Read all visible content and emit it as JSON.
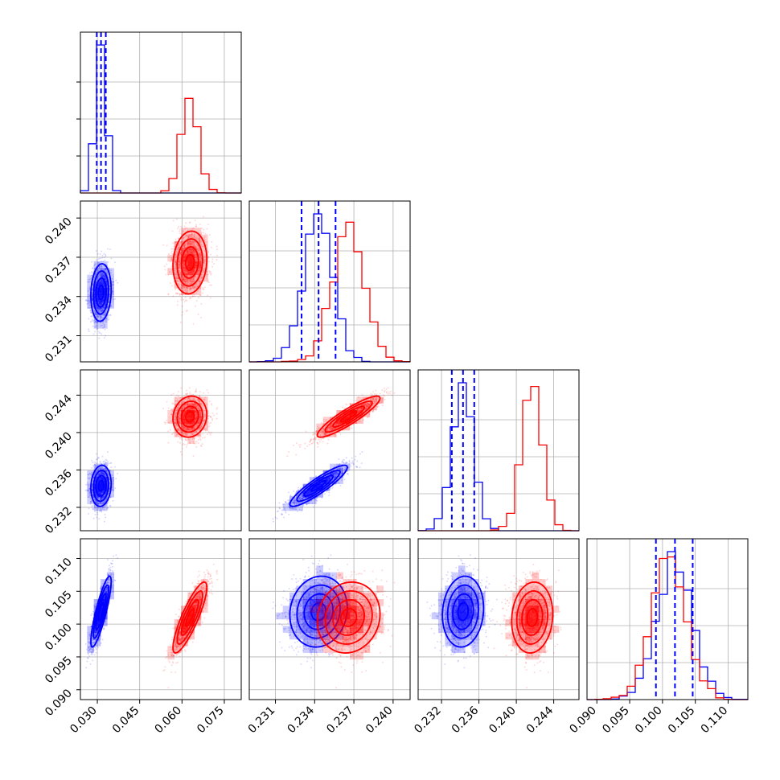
{
  "chart_data": {
    "type": "corner",
    "grid": true,
    "parameters": [
      {
        "range": [
          0.024,
          0.081
        ],
        "ticks": [
          "0.030",
          "0.045",
          "0.060",
          "0.075"
        ]
      },
      {
        "range": [
          0.229,
          0.2413
        ],
        "ticks": [
          "0.231",
          "0.234",
          "0.237",
          "0.240"
        ]
      },
      {
        "range": [
          0.2295,
          0.2467
        ],
        "ticks": [
          "0.232",
          "0.236",
          "0.240",
          "0.244"
        ]
      },
      {
        "range": [
          0.0885,
          0.113
        ],
        "ticks": [
          "0.090",
          "0.095",
          "0.100",
          "0.105",
          "0.110"
        ]
      }
    ],
    "series": [
      {
        "color": "#0000ff",
        "means": [
          0.0313,
          0.2343,
          0.2343,
          0.1019
        ],
        "sds": [
          0.0018,
          0.0011,
          0.0011,
          0.0027
        ],
        "correlations": [
          [
            0,
            1,
            0.1
          ],
          [
            0,
            2,
            0.1
          ],
          [
            0,
            3,
            0.85
          ],
          [
            1,
            2,
            0.9
          ],
          [
            1,
            3,
            0.1
          ],
          [
            2,
            3,
            0.1
          ]
        ],
        "quantiles": [
          [
            0.0298,
            0.0313,
            0.033
          ],
          [
            0.233,
            0.2343,
            0.2356
          ],
          [
            0.2331,
            0.2343,
            0.2355
          ],
          [
            0.099,
            0.1019,
            0.1046
          ]
        ]
      },
      {
        "color": "#ff0000",
        "means": [
          0.0628,
          0.2366,
          0.2417,
          0.101
        ],
        "sds": [
          0.003,
          0.0012,
          0.0011,
          0.0027
        ],
        "correlations": [
          [
            0,
            1,
            0.1
          ],
          [
            0,
            2,
            0.1
          ],
          [
            0,
            3,
            0.85
          ],
          [
            1,
            2,
            0.9
          ],
          [
            1,
            3,
            0.1
          ],
          [
            2,
            3,
            0.1
          ]
        ],
        "quantiles": []
      }
    ]
  }
}
